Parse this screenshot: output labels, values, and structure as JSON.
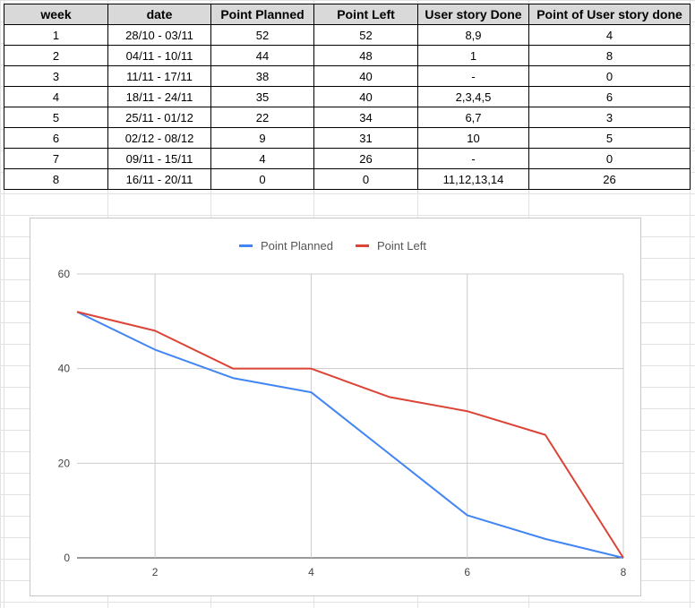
{
  "table": {
    "headers": [
      "week",
      "date",
      "Point Planned",
      "Point Left",
      "User story Done",
      "Point of User story done"
    ],
    "rows": [
      [
        "1",
        "28/10 - 03/11",
        "52",
        "52",
        "8,9",
        "4"
      ],
      [
        "2",
        "04/11 - 10/11",
        "44",
        "48",
        "1",
        "8"
      ],
      [
        "3",
        "11/11 - 17/11",
        "38",
        "40",
        "-",
        "0"
      ],
      [
        "4",
        "18/11 - 24/11",
        "35",
        "40",
        "2,3,4,5",
        "6"
      ],
      [
        "5",
        "25/11 - 01/12",
        "22",
        "34",
        "6,7",
        "3"
      ],
      [
        "6",
        "02/12 - 08/12",
        "9",
        "31",
        "10",
        "5"
      ],
      [
        "7",
        "09/11 - 15/11",
        "4",
        "26",
        "-",
        "0"
      ],
      [
        "8",
        "16/11 - 20/11",
        "0",
        "0",
        "11,12,13,14",
        "26"
      ]
    ]
  },
  "chart_data": {
    "type": "line",
    "title": "",
    "xlabel": "",
    "ylabel": "",
    "x": [
      1,
      2,
      3,
      4,
      5,
      6,
      7,
      8
    ],
    "series": [
      {
        "name": "Point Planned",
        "color": "#4285f4",
        "values": [
          52,
          44,
          38,
          35,
          22,
          9,
          4,
          0
        ]
      },
      {
        "name": "Point Left",
        "color": "#db4437",
        "values": [
          52,
          48,
          40,
          40,
          34,
          31,
          26,
          0
        ]
      }
    ],
    "xlim": [
      1,
      8
    ],
    "ylim": [
      0,
      60
    ],
    "xticks": [
      2,
      4,
      6,
      8
    ],
    "yticks": [
      0,
      20,
      40,
      60
    ],
    "grid": true,
    "legend_position": "top"
  }
}
